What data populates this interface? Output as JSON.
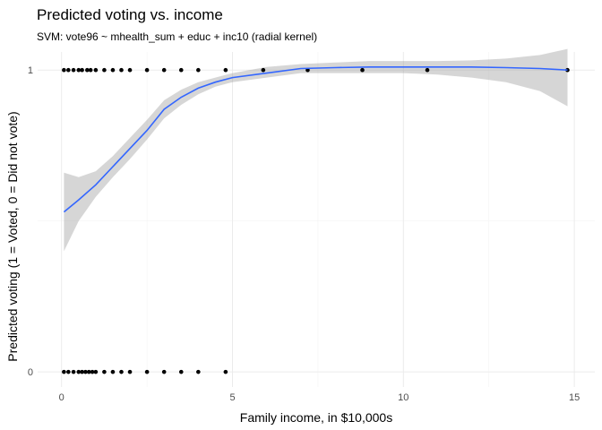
{
  "chart_data": {
    "type": "scatter",
    "title": "Predicted voting vs. income",
    "subtitle": "SVM: vote96 ~ mhealth_sum + educ + inc10 (radial kernel)",
    "xlabel": "Family income, in $10,000s",
    "ylabel": "Predicted voting (1 = Voted, 0 = Did not vote)",
    "xlim": [
      -0.7,
      15.6
    ],
    "ylim": [
      -0.05,
      1.06
    ],
    "x_ticks": [
      0,
      5,
      10,
      15
    ],
    "x_tick_labels": [
      "0",
      "5",
      "10",
      "15"
    ],
    "x_minor_ticks": [
      2.5,
      7.5,
      12.5
    ],
    "y_ticks": [
      0,
      1
    ],
    "y_tick_labels": [
      "0",
      "1"
    ],
    "y_minor_ticks": [
      0.5
    ],
    "grid": true,
    "legend": "none",
    "colors": {
      "points": "#000000",
      "smooth_line": "#3366FF",
      "ribbon": "#999999"
    },
    "points": [
      {
        "x": 0.07,
        "y": 1
      },
      {
        "x": 0.2,
        "y": 1
      },
      {
        "x": 0.35,
        "y": 1
      },
      {
        "x": 0.5,
        "y": 1
      },
      {
        "x": 0.6,
        "y": 1
      },
      {
        "x": 0.75,
        "y": 1
      },
      {
        "x": 0.85,
        "y": 1
      },
      {
        "x": 1.0,
        "y": 1
      },
      {
        "x": 1.25,
        "y": 1
      },
      {
        "x": 1.5,
        "y": 1
      },
      {
        "x": 1.75,
        "y": 1
      },
      {
        "x": 2.0,
        "y": 1
      },
      {
        "x": 2.5,
        "y": 1
      },
      {
        "x": 3.0,
        "y": 1
      },
      {
        "x": 3.5,
        "y": 1
      },
      {
        "x": 4.0,
        "y": 1
      },
      {
        "x": 4.8,
        "y": 1
      },
      {
        "x": 5.9,
        "y": 1
      },
      {
        "x": 7.2,
        "y": 1
      },
      {
        "x": 8.8,
        "y": 1
      },
      {
        "x": 10.7,
        "y": 1
      },
      {
        "x": 14.8,
        "y": 1
      },
      {
        "x": 0.07,
        "y": 0
      },
      {
        "x": 0.2,
        "y": 0
      },
      {
        "x": 0.35,
        "y": 0
      },
      {
        "x": 0.5,
        "y": 0
      },
      {
        "x": 0.6,
        "y": 0
      },
      {
        "x": 0.7,
        "y": 0
      },
      {
        "x": 0.8,
        "y": 0
      },
      {
        "x": 0.9,
        "y": 0
      },
      {
        "x": 1.0,
        "y": 0
      },
      {
        "x": 1.25,
        "y": 0
      },
      {
        "x": 1.5,
        "y": 0
      },
      {
        "x": 1.75,
        "y": 0
      },
      {
        "x": 2.0,
        "y": 0
      },
      {
        "x": 2.5,
        "y": 0
      },
      {
        "x": 3.0,
        "y": 0
      },
      {
        "x": 3.5,
        "y": 0
      },
      {
        "x": 4.0,
        "y": 0
      },
      {
        "x": 4.8,
        "y": 0
      }
    ],
    "smooth": {
      "x": [
        0.07,
        0.5,
        1.0,
        1.5,
        2.0,
        2.5,
        3.0,
        3.5,
        4.0,
        4.5,
        5.0,
        6.0,
        7.0,
        8.0,
        9.0,
        10.0,
        11.0,
        12.0,
        13.0,
        14.0,
        14.8
      ],
      "y": [
        0.53,
        0.57,
        0.62,
        0.68,
        0.74,
        0.8,
        0.87,
        0.91,
        0.94,
        0.96,
        0.975,
        0.99,
        1.005,
        1.008,
        1.01,
        1.01,
        1.01,
        1.01,
        1.008,
        1.005,
        1.0
      ],
      "lower": [
        0.4,
        0.5,
        0.58,
        0.645,
        0.705,
        0.77,
        0.84,
        0.885,
        0.92,
        0.945,
        0.96,
        0.975,
        0.99,
        0.99,
        0.99,
        0.99,
        0.985,
        0.975,
        0.96,
        0.93,
        0.88
      ],
      "upper": [
        0.66,
        0.645,
        0.665,
        0.715,
        0.775,
        0.835,
        0.9,
        0.935,
        0.96,
        0.975,
        0.99,
        1.01,
        1.02,
        1.025,
        1.03,
        1.03,
        1.03,
        1.032,
        1.038,
        1.05,
        1.07
      ]
    }
  }
}
